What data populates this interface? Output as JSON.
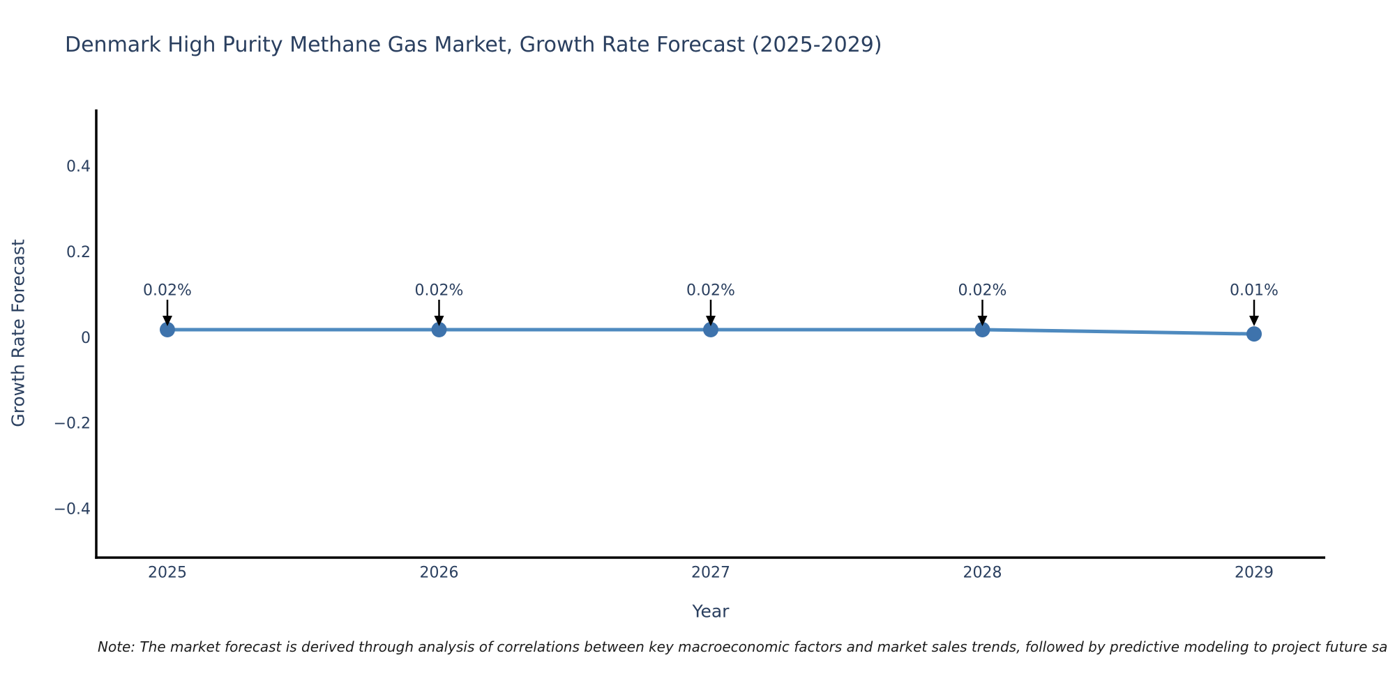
{
  "note": "Note: The market forecast is derived through analysis of correlations between key macroeconomic factors and market sales trends, followed by predictive modeling to project future sa",
  "chart_data": {
    "type": "line",
    "title": "Denmark High Purity Methane Gas Market, Growth Rate Forecast (2025-2029)",
    "xlabel": "Year",
    "ylabel": "Growth Rate Forecast",
    "categories": [
      "2025",
      "2026",
      "2027",
      "2028",
      "2029"
    ],
    "values": [
      0.02,
      0.02,
      0.02,
      0.02,
      0.01
    ],
    "annotations": [
      "0.02%",
      "0.02%",
      "0.02%",
      "0.02%",
      "0.01%"
    ],
    "yticks": [
      0.4,
      0.2,
      0,
      -0.2,
      -0.4
    ],
    "ytick_labels": [
      "0.4",
      "0.2",
      "0",
      "−0.2",
      "−0.4"
    ],
    "ylim": [
      -0.512,
      0.534
    ],
    "grid": false,
    "legend": "none",
    "line_color": "#4E8ABF",
    "marker_color": "#3E73AC",
    "arrow_color": "#000000",
    "axis_color": "#000000",
    "text_color": "#2a3f5f"
  }
}
